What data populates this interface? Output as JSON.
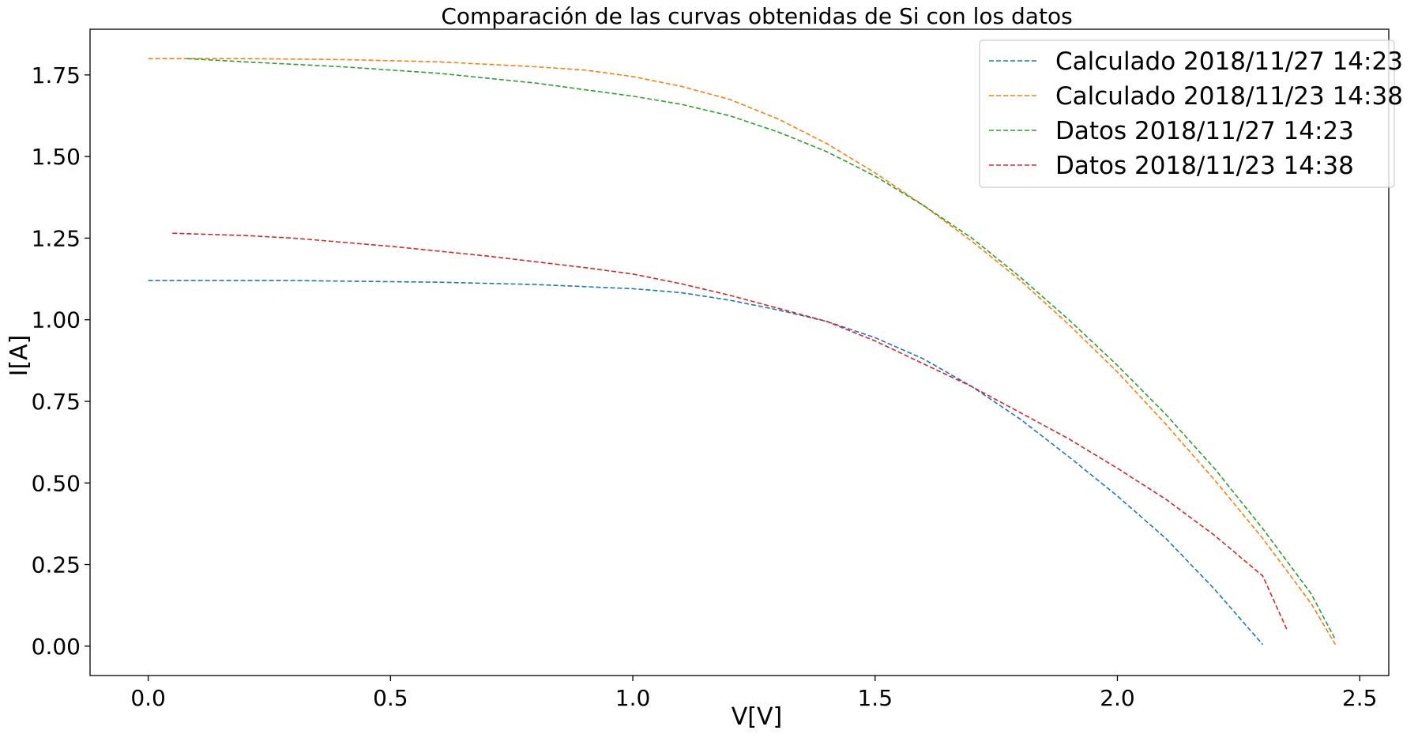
{
  "chart_data": {
    "type": "line",
    "title": "Comparación de las curvas obtenidas de Si con los datos",
    "xlabel": "V[V]",
    "ylabel": "I[A]",
    "xlim": [
      -0.12,
      2.56
    ],
    "ylim": [
      -0.09,
      1.89
    ],
    "x_ticks": [
      0.0,
      0.5,
      1.0,
      1.5,
      2.0,
      2.5
    ],
    "x_tick_labels": [
      "0.0",
      "0.5",
      "1.0",
      "1.5",
      "2.0",
      "2.5"
    ],
    "y_ticks": [
      0.0,
      0.25,
      0.5,
      0.75,
      1.0,
      1.25,
      1.5,
      1.75
    ],
    "y_tick_labels": [
      "0.00",
      "0.25",
      "0.50",
      "0.75",
      "1.00",
      "1.25",
      "1.50",
      "1.75"
    ],
    "grid": false,
    "legend_position": "top-right",
    "line_style": "dashed",
    "series": [
      {
        "name": "Calculado 2018/11/27 14:23",
        "color": "#1f77b4",
        "points": [
          [
            0.0,
            1.12
          ],
          [
            0.3,
            1.12
          ],
          [
            0.6,
            1.115
          ],
          [
            0.8,
            1.108
          ],
          [
            1.0,
            1.095
          ],
          [
            1.1,
            1.083
          ],
          [
            1.2,
            1.06
          ],
          [
            1.3,
            1.03
          ],
          [
            1.4,
            0.995
          ],
          [
            1.5,
            0.945
          ],
          [
            1.6,
            0.88
          ],
          [
            1.7,
            0.795
          ],
          [
            1.8,
            0.695
          ],
          [
            1.9,
            0.58
          ],
          [
            2.0,
            0.46
          ],
          [
            2.1,
            0.33
          ],
          [
            2.2,
            0.175
          ],
          [
            2.3,
            0.005
          ]
        ]
      },
      {
        "name": "Calculado 2018/11/23 14:38",
        "color": "#ff7f0e",
        "points": [
          [
            0.0,
            1.8
          ],
          [
            0.2,
            1.8
          ],
          [
            0.4,
            1.797
          ],
          [
            0.6,
            1.79
          ],
          [
            0.8,
            1.775
          ],
          [
            0.9,
            1.765
          ],
          [
            1.0,
            1.745
          ],
          [
            1.1,
            1.715
          ],
          [
            1.2,
            1.675
          ],
          [
            1.3,
            1.615
          ],
          [
            1.4,
            1.54
          ],
          [
            1.5,
            1.45
          ],
          [
            1.6,
            1.35
          ],
          [
            1.7,
            1.24
          ],
          [
            1.8,
            1.12
          ],
          [
            1.9,
            0.985
          ],
          [
            2.0,
            0.84
          ],
          [
            2.1,
            0.68
          ],
          [
            2.2,
            0.51
          ],
          [
            2.3,
            0.33
          ],
          [
            2.4,
            0.13
          ],
          [
            2.45,
            0.005
          ]
        ]
      },
      {
        "name": "Datos 2018/11/27 14:23",
        "color": "#2ca02c",
        "points": [
          [
            0.08,
            1.8
          ],
          [
            0.2,
            1.79
          ],
          [
            0.4,
            1.775
          ],
          [
            0.6,
            1.755
          ],
          [
            0.8,
            1.725
          ],
          [
            1.0,
            1.685
          ],
          [
            1.1,
            1.66
          ],
          [
            1.2,
            1.625
          ],
          [
            1.3,
            1.575
          ],
          [
            1.4,
            1.515
          ],
          [
            1.5,
            1.44
          ],
          [
            1.6,
            1.35
          ],
          [
            1.7,
            1.25
          ],
          [
            1.8,
            1.13
          ],
          [
            1.9,
            1.0
          ],
          [
            2.0,
            0.86
          ],
          [
            2.1,
            0.71
          ],
          [
            2.2,
            0.545
          ],
          [
            2.3,
            0.36
          ],
          [
            2.4,
            0.16
          ],
          [
            2.45,
            0.02
          ]
        ]
      },
      {
        "name": "Datos 2018/11/23 14:38",
        "color": "#d62728",
        "points": [
          [
            0.05,
            1.265
          ],
          [
            0.2,
            1.258
          ],
          [
            0.3,
            1.25
          ],
          [
            0.5,
            1.225
          ],
          [
            0.7,
            1.195
          ],
          [
            0.9,
            1.16
          ],
          [
            1.0,
            1.14
          ],
          [
            1.1,
            1.11
          ],
          [
            1.2,
            1.075
          ],
          [
            1.3,
            1.035
          ],
          [
            1.4,
            0.995
          ],
          [
            1.5,
            0.935
          ],
          [
            1.6,
            0.865
          ],
          [
            1.7,
            0.795
          ],
          [
            1.8,
            0.715
          ],
          [
            1.9,
            0.635
          ],
          [
            2.0,
            0.545
          ],
          [
            2.1,
            0.45
          ],
          [
            2.2,
            0.34
          ],
          [
            2.3,
            0.215
          ],
          [
            2.35,
            0.05
          ]
        ]
      }
    ]
  }
}
